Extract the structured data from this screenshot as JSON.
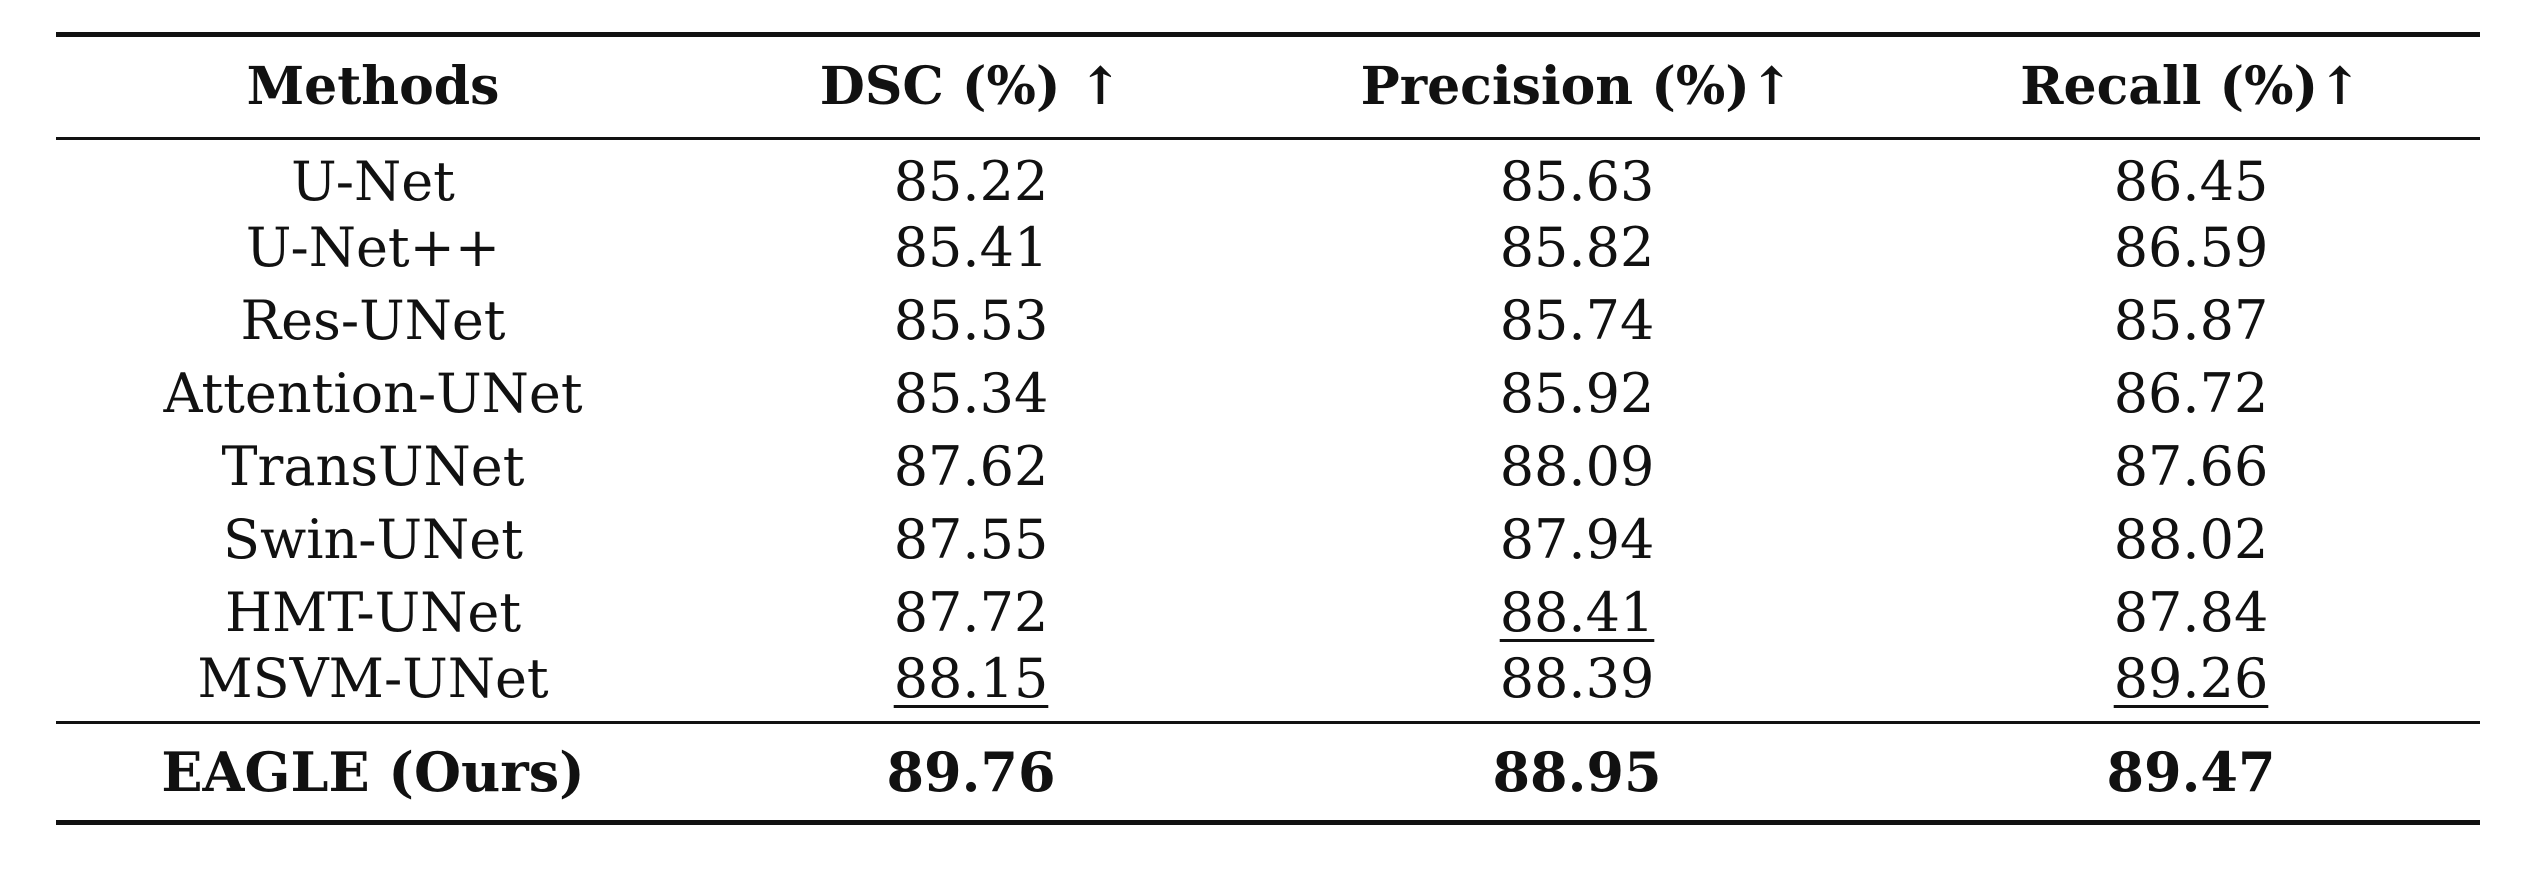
{
  "table": {
    "headers": [
      "Methods",
      "DSC (%) ↑",
      "Precision (%)↑",
      "Recall (%)↑"
    ],
    "rows": [
      {
        "method": "U-Net",
        "dsc": "85.22",
        "precision": "85.63",
        "recall": "86.45"
      },
      {
        "method": "U-Net++",
        "dsc": "85.41",
        "precision": "85.82",
        "recall": "86.59"
      },
      {
        "method": "Res-UNet",
        "dsc": "85.53",
        "precision": "85.74",
        "recall": "85.87"
      },
      {
        "method": "Attention-UNet",
        "dsc": "85.34",
        "precision": "85.92",
        "recall": "86.72"
      },
      {
        "method": "TransUNet",
        "dsc": "87.62",
        "precision": "88.09",
        "recall": "87.66"
      },
      {
        "method": "Swin-UNet",
        "dsc": "87.55",
        "precision": "87.94",
        "recall": "88.02"
      },
      {
        "method": "HMT-UNet",
        "dsc": "87.72",
        "precision": "88.41",
        "recall": "87.84"
      },
      {
        "method": "MSVM-UNet",
        "dsc": "88.15",
        "precision": "88.39",
        "recall": "89.26"
      }
    ],
    "ours": {
      "method": "EAGLE (Ours)",
      "dsc": "89.76",
      "precision": "88.95",
      "recall": "89.47"
    },
    "second_best": {
      "dsc": "88.15",
      "precision": "88.41",
      "recall": "89.26"
    }
  }
}
